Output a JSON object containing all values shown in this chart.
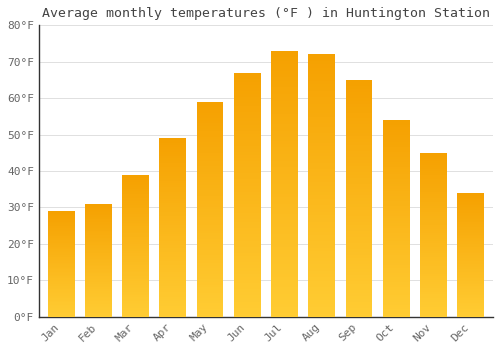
{
  "title": "Average monthly temperatures (°F ) in Huntington Station",
  "months": [
    "Jan",
    "Feb",
    "Mar",
    "Apr",
    "May",
    "Jun",
    "Jul",
    "Aug",
    "Sep",
    "Oct",
    "Nov",
    "Dec"
  ],
  "values": [
    29,
    31,
    39,
    49,
    59,
    67,
    73,
    72,
    65,
    54,
    45,
    34
  ],
  "bar_color_bottom": "#FFCC33",
  "bar_color_top": "#F5A000",
  "bar_edge_color": "#E09000",
  "background_color": "#FFFFFF",
  "grid_color": "#E0E0E0",
  "title_color": "#444444",
  "label_color": "#666666",
  "spine_color": "#333333",
  "ylim": [
    0,
    80
  ],
  "yticks": [
    0,
    10,
    20,
    30,
    40,
    50,
    60,
    70,
    80
  ],
  "ylabel_format": "°F",
  "title_fontsize": 9.5,
  "tick_fontsize": 8,
  "bar_width": 0.72,
  "figsize": [
    5.0,
    3.5
  ],
  "dpi": 100
}
